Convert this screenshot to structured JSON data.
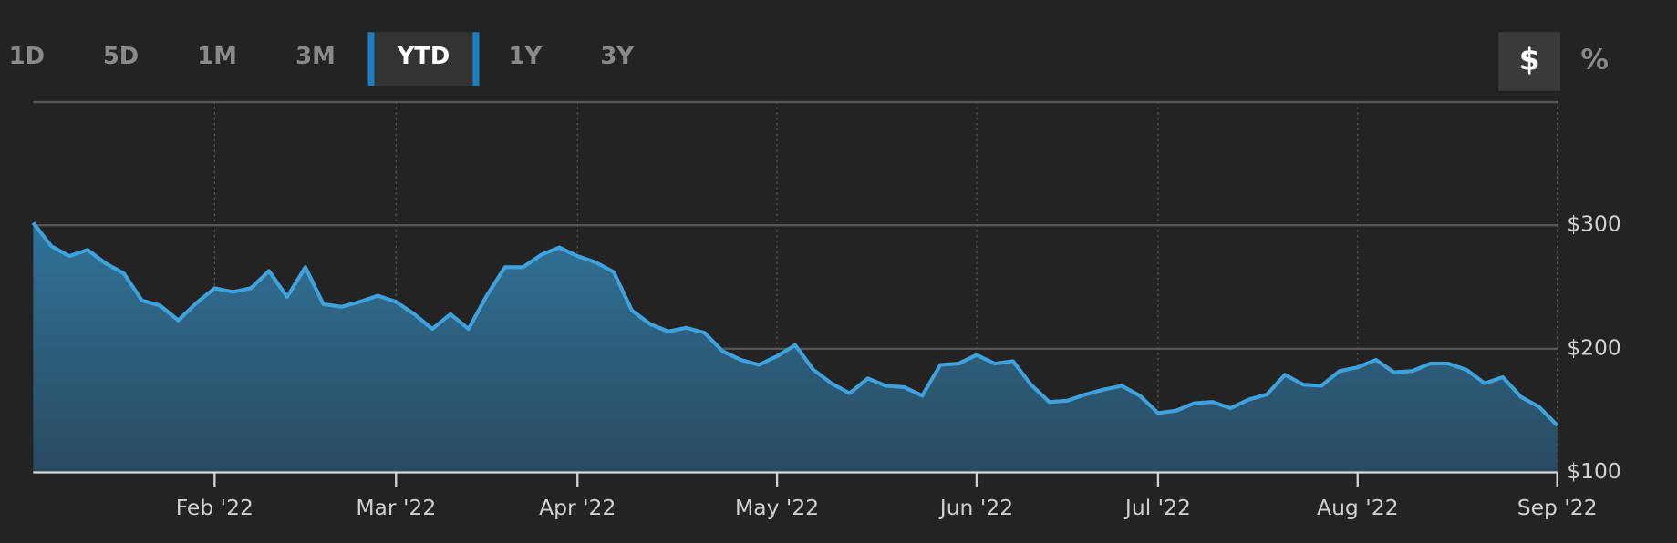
{
  "controls": {
    "ranges": [
      "1D",
      "5D",
      "1M",
      "3M",
      "YTD",
      "1Y",
      "3Y"
    ],
    "units": [
      "$",
      "%"
    ]
  },
  "chart_data": {
    "type": "area",
    "categories": [
      null,
      null,
      null,
      null,
      null,
      null,
      null,
      null,
      null,
      null,
      "Feb '22",
      null,
      null,
      null,
      null,
      null,
      null,
      null,
      null,
      null,
      "Mar '22",
      null,
      null,
      null,
      null,
      null,
      null,
      null,
      null,
      null,
      "Apr '22",
      null,
      null,
      null,
      null,
      null,
      null,
      null,
      null,
      null,
      null,
      "May '22",
      null,
      null,
      null,
      null,
      null,
      null,
      null,
      null,
      null,
      null,
      "Jun '22",
      null,
      null,
      null,
      null,
      null,
      null,
      null,
      null,
      null,
      "Jul '22",
      null,
      null,
      null,
      null,
      null,
      null,
      null,
      null,
      null,
      null,
      "Aug '22",
      null,
      null,
      null,
      null,
      null,
      null,
      null,
      null,
      null,
      null,
      "Sep '22"
    ],
    "values": [
      302,
      283,
      275,
      280,
      269,
      261,
      239,
      235,
      223,
      237,
      249,
      246,
      249,
      263,
      242,
      266,
      236,
      234,
      238,
      243,
      238,
      228,
      216,
      228,
      216,
      243,
      266,
      266,
      276,
      282,
      275,
      270,
      262,
      231,
      220,
      214,
      217,
      213,
      198,
      191,
      187,
      194,
      203,
      183,
      172,
      164,
      176,
      170,
      169,
      162,
      187,
      188,
      195,
      188,
      190,
      171,
      157,
      158,
      163,
      167,
      170,
      162,
      148,
      150,
      156,
      157,
      152,
      159,
      163,
      179,
      171,
      170,
      182,
      185,
      191,
      181,
      182,
      188,
      188,
      183,
      172,
      177,
      161,
      153,
      138
    ],
    "color": "#3fa2dc",
    "ylim": [
      100,
      400
    ],
    "yticks": [
      {
        "value": 100,
        "label": "$100"
      },
      {
        "value": 200,
        "label": "$200"
      },
      {
        "value": 300,
        "label": "$300"
      }
    ],
    "grid": true
  }
}
